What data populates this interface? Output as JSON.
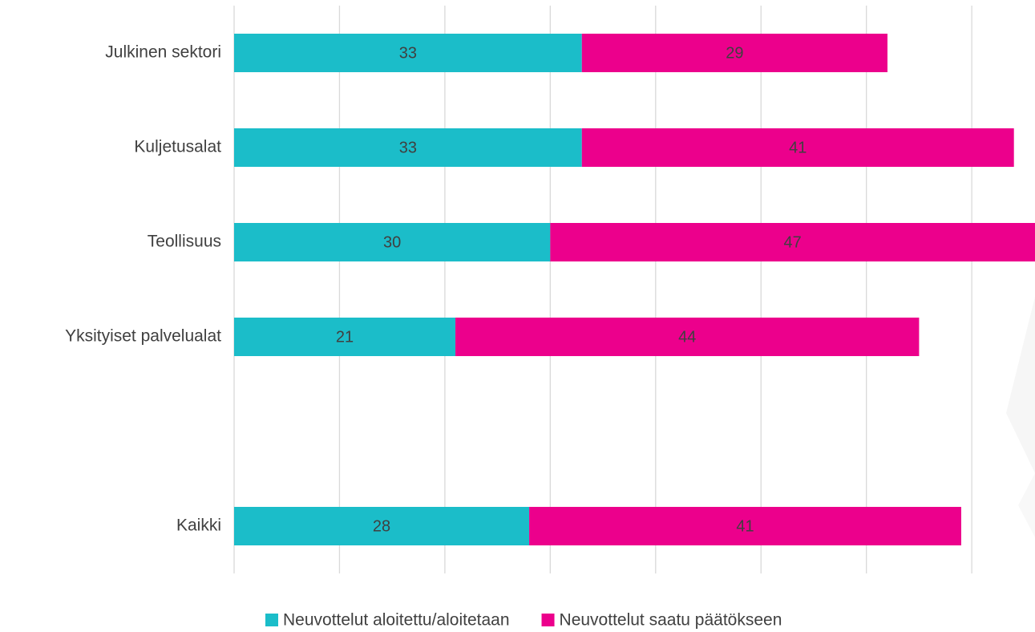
{
  "chart_data": {
    "type": "stacked-bar-horizontal",
    "categories": [
      "Julkinen sektori",
      "Kuljetusalat",
      "Teollisuus",
      "Yksityiset palvelualat",
      null,
      "Kaikki"
    ],
    "series": [
      {
        "name": "Neuvottelut aloitettu/aloitetaan",
        "color": "#1bbdc9",
        "values": [
          33,
          33,
          30,
          21,
          null,
          28
        ]
      },
      {
        "name": "Neuvottelut saatu päätökseen",
        "color": "#ec008c",
        "values": [
          29,
          41,
          47,
          44,
          null,
          41
        ]
      }
    ],
    "xlim": [
      0,
      76
    ],
    "xticks": [
      0,
      10,
      20,
      30,
      40,
      50,
      60,
      70
    ],
    "grid": true,
    "legend": "bottom"
  }
}
